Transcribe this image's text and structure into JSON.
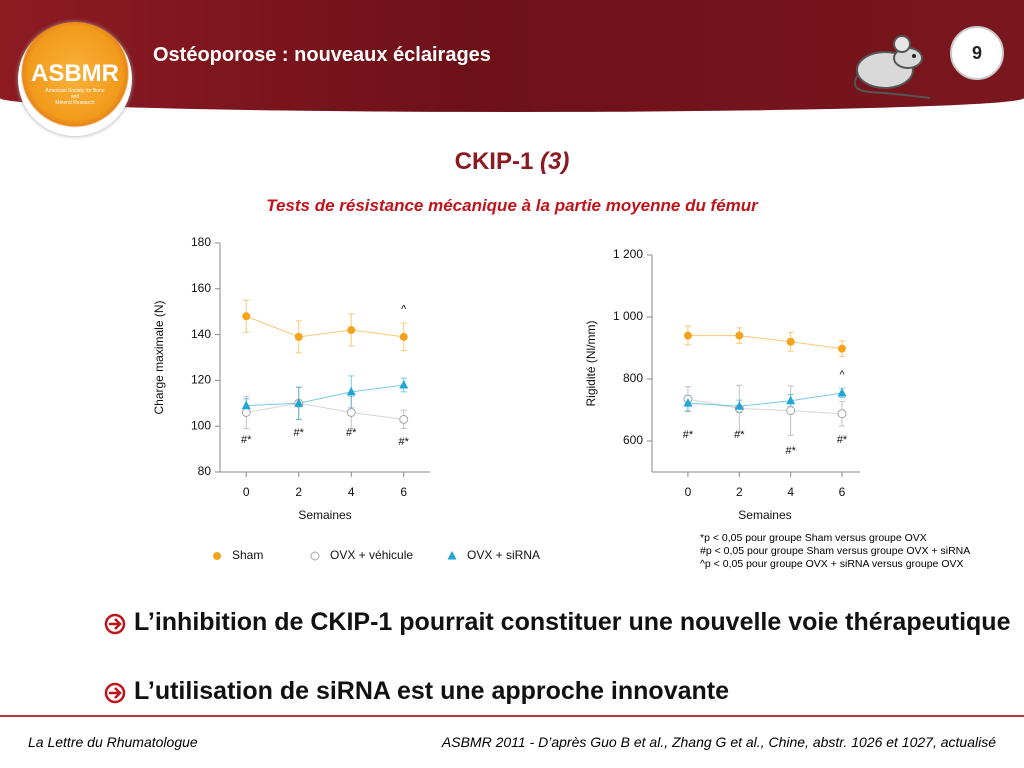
{
  "header": {
    "title": "Ostéoporose : nouveaux éclairages",
    "page": "9",
    "logo": {
      "name": "ASBMR",
      "subtitle": [
        "American Society for Bone",
        "and",
        "Mineral Research"
      ]
    }
  },
  "slide": {
    "title": "CKIP-1",
    "title_ref": "(3)",
    "subtitle": "Tests de résistance mécanique à la partie moyenne du fémur"
  },
  "chart_data": [
    {
      "type": "line",
      "y_label": "Charge maximale (N)",
      "x_label": "Semaines",
      "x": [
        0,
        2,
        4,
        6
      ],
      "xlim": [
        -1,
        7
      ],
      "xticks": [
        0,
        2,
        4,
        6
      ],
      "ylim": [
        80,
        180
      ],
      "yticks": [
        80,
        100,
        120,
        140,
        160,
        180
      ],
      "series": [
        {
          "name": "Sham",
          "color": "#f5a31a",
          "marker": "circle",
          "values": [
            148,
            139,
            142,
            139
          ],
          "errors": [
            7,
            7,
            7,
            6
          ]
        },
        {
          "name": "OVX + véhicule",
          "color": "#a6a6a6",
          "marker": "open-circle",
          "values": [
            106,
            110,
            106,
            103
          ],
          "errors": [
            7,
            7,
            7,
            4
          ]
        },
        {
          "name": "OVX + siRNA",
          "color": "#1ea7d6",
          "marker": "triangle",
          "values": [
            109,
            110,
            115,
            118
          ],
          "errors": [
            3,
            7,
            7,
            3
          ]
        }
      ],
      "annotations": [
        {
          "text": "#*",
          "x": 0,
          "y": 94
        },
        {
          "text": "#*",
          "x": 2,
          "y": 97
        },
        {
          "text": "#*",
          "x": 4,
          "y": 97
        },
        {
          "text": "#*",
          "x": 6,
          "y": 93
        },
        {
          "text": "^",
          "x": 6,
          "y": 151
        }
      ]
    },
    {
      "type": "line",
      "y_label": "Rigidité (Nl/mm)",
      "x_label": "Semaines",
      "x": [
        0,
        2,
        4,
        6
      ],
      "xlim": [
        -1.4,
        6.7
      ],
      "xticks": [
        0,
        2,
        4,
        6
      ],
      "ylim": [
        500,
        1200
      ],
      "yticks": [
        600,
        800,
        {
          "value": 1000,
          "label": "1 000"
        },
        {
          "value": 1200,
          "label": "1 200"
        }
      ],
      "series": [
        {
          "color": "#f5a31a",
          "marker": "circle",
          "values": [
            940,
            940,
            920,
            898
          ],
          "errors": [
            30,
            25,
            30,
            25
          ]
        },
        {
          "color": "#a6a6a6",
          "marker": "open-circle",
          "values": [
            735,
            705,
            698,
            688
          ],
          "errors": [
            40,
            75,
            80,
            40
          ]
        },
        {
          "color": "#1ea7d6",
          "marker": "triangle",
          "values": [
            722,
            712,
            730,
            755
          ],
          "errors": [
            25,
            20,
            20,
            15
          ]
        }
      ],
      "annotations": [
        {
          "text": "#*",
          "x": 0,
          "y": 619
        },
        {
          "text": "#*",
          "x": 2,
          "y": 619
        },
        {
          "text": "#*",
          "x": 4,
          "y": 568
        },
        {
          "text": "#*",
          "x": 6,
          "y": 603
        },
        {
          "text": "^",
          "x": 6,
          "y": 812
        }
      ]
    }
  ],
  "footnotes": [
    "*p < 0,05  pour groupe Sham versus groupe OVX",
    "#p < 0,05 pour groupe Sham versus groupe OVX + siRNA",
    "^p < 0,05 pour groupe OVX + siRNA versus groupe OVX"
  ],
  "bullets": [
    "L’inhibition de CKIP-1 pourrait constituer une nouvelle voie thérapeutique",
    "L’utilisation de siRNA est une approche innovante"
  ],
  "footer": {
    "left": "La Lettre du Rhumatologue",
    "right": "ASBMR 2011 - D’après Guo B et al., Zhang G et al., Chine, abstr. 1026 et 1027, actualisé"
  }
}
